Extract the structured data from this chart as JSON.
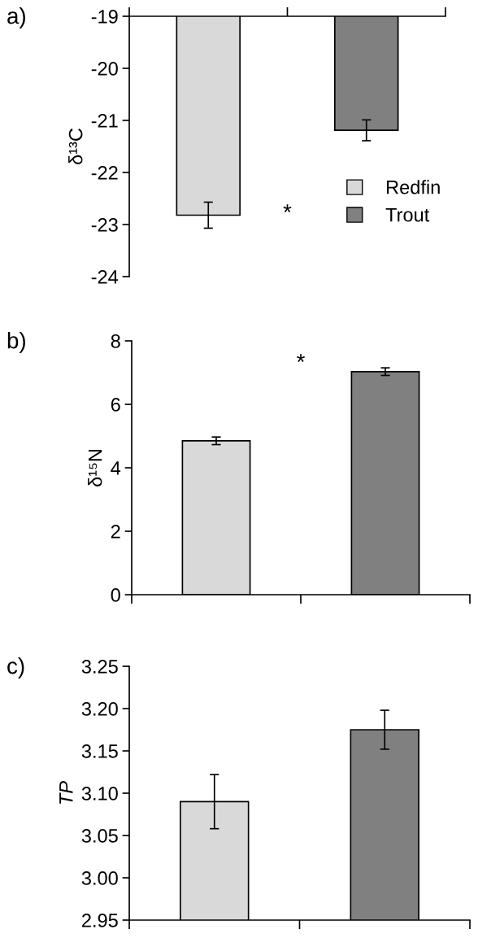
{
  "chart_data": [
    {
      "type": "bar",
      "title": "a)",
      "ylabel": "δ¹³C",
      "categories": [
        null,
        null
      ],
      "ylim": [
        -24,
        -19
      ],
      "yticks": [
        -24,
        -23,
        -22,
        -21,
        -20,
        -19
      ],
      "legend": "bottom right",
      "annotations": [
        "*"
      ],
      "series": [
        {
          "name": "Redfin",
          "color": "#d9d9d9",
          "values": [
            -22.82,
            null
          ],
          "errors": [
            0.25,
            null
          ]
        },
        {
          "name": "Trout",
          "color": "#808080",
          "values": [
            null,
            -21.19
          ],
          "errors": [
            null,
            0.2
          ]
        }
      ]
    },
    {
      "type": "bar",
      "title": "b)",
      "ylabel": "δ¹⁵N",
      "categories": [
        null,
        null
      ],
      "ylim": [
        0,
        8
      ],
      "yticks": [
        0,
        2,
        4,
        6,
        8
      ],
      "annotations": [
        "*"
      ],
      "series": [
        {
          "color": "#d9d9d9",
          "values": [
            4.85,
            null
          ],
          "errors": [
            0.12,
            null
          ]
        },
        {
          "color": "#808080",
          "values": [
            null,
            7.03
          ],
          "errors": [
            null,
            0.12
          ]
        }
      ]
    },
    {
      "type": "bar",
      "title": "c)",
      "ylabel": "TP",
      "categories": [
        null,
        null
      ],
      "ylim": [
        2.95,
        3.25
      ],
      "yticks": [
        {
          "value": 2.95,
          "label": "2.95"
        },
        {
          "value": 3.0,
          "label": "3.00"
        },
        {
          "value": 3.05,
          "label": "3.05"
        },
        {
          "value": 3.1,
          "label": "3.10"
        },
        {
          "value": 3.15,
          "label": "3.15"
        },
        {
          "value": 3.2,
          "label": "3.20"
        },
        {
          "value": 3.25,
          "label": "3.25"
        }
      ],
      "series": [
        {
          "color": "#d9d9d9",
          "values": [
            3.09,
            null
          ],
          "errors": [
            0.032,
            null
          ]
        },
        {
          "color": "#808080",
          "values": [
            null,
            3.175
          ],
          "errors": [
            null,
            0.023
          ]
        }
      ]
    }
  ]
}
